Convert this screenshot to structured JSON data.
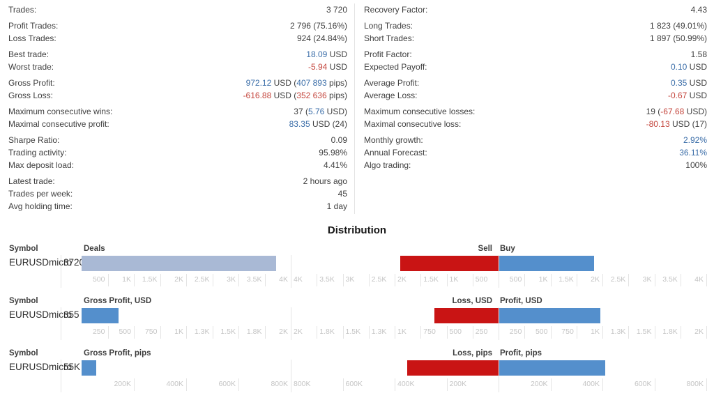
{
  "colors": {
    "text_dark": "#3f3f3f",
    "positive_blue_text": "#3a6da8",
    "negative_red_text": "#c4463d",
    "axis_label": "#c4c4c4",
    "gridline": "#e4e4e4",
    "deals_bar": "#a9b9d5",
    "sell_bar": "#c91414",
    "buy_bar": "#548fcc"
  },
  "stats": {
    "left": [
      [
        {
          "label": "Trades:",
          "value": [
            {
              "t": "3 720",
              "c": "d"
            }
          ]
        }
      ],
      [
        {
          "label": "Profit Trades:",
          "value": [
            {
              "t": "2 796 (75.16%)",
              "c": "d"
            }
          ]
        },
        {
          "label": "Loss Trades:",
          "value": [
            {
              "t": "924 (24.84%)",
              "c": "d"
            }
          ]
        }
      ],
      [
        {
          "label": "Best trade:",
          "value": [
            {
              "t": "18.09",
              "c": "b"
            },
            {
              "t": " USD",
              "c": "d"
            }
          ]
        },
        {
          "label": "Worst trade:",
          "value": [
            {
              "t": "-5.94",
              "c": "r"
            },
            {
              "t": " USD",
              "c": "d"
            }
          ]
        }
      ],
      [
        {
          "label": "Gross Profit:",
          "value": [
            {
              "t": "972.12",
              "c": "b"
            },
            {
              "t": " USD (",
              "c": "d"
            },
            {
              "t": "407 893",
              "c": "b"
            },
            {
              "t": " pips)",
              "c": "d"
            }
          ]
        },
        {
          "label": "Gross Loss:",
          "value": [
            {
              "t": "-616.88",
              "c": "r"
            },
            {
              "t": " USD (",
              "c": "d"
            },
            {
              "t": "352 636",
              "c": "r"
            },
            {
              "t": " pips)",
              "c": "d"
            }
          ]
        }
      ],
      [
        {
          "label": "Maximum consecutive wins:",
          "value": [
            {
              "t": "37 (",
              "c": "d"
            },
            {
              "t": "5.76",
              "c": "b"
            },
            {
              "t": " USD)",
              "c": "d"
            }
          ]
        },
        {
          "label": "Maximal consecutive profit:",
          "value": [
            {
              "t": "83.35",
              "c": "b"
            },
            {
              "t": " USD (24)",
              "c": "d"
            }
          ]
        }
      ],
      [
        {
          "label": "Sharpe Ratio:",
          "value": [
            {
              "t": "0.09",
              "c": "d"
            }
          ]
        },
        {
          "label": "Trading activity:",
          "value": [
            {
              "t": "95.98%",
              "c": "d"
            }
          ]
        },
        {
          "label": "Max deposit load:",
          "value": [
            {
              "t": "4.41%",
              "c": "d"
            }
          ]
        }
      ],
      [
        {
          "label": "Latest trade:",
          "value": [
            {
              "t": "2 hours ago",
              "c": "d"
            }
          ]
        },
        {
          "label": "Trades per week:",
          "value": [
            {
              "t": "45",
              "c": "d"
            }
          ]
        },
        {
          "label": "Avg holding time:",
          "value": [
            {
              "t": "1 day",
              "c": "d"
            }
          ]
        }
      ]
    ],
    "right": [
      [
        {
          "label": "Recovery Factor:",
          "value": [
            {
              "t": "4.43",
              "c": "d"
            }
          ]
        }
      ],
      [
        {
          "label": "Long Trades:",
          "value": [
            {
              "t": "1 823 (49.01%)",
              "c": "d"
            }
          ]
        },
        {
          "label": "Short Trades:",
          "value": [
            {
              "t": "1 897 (50.99%)",
              "c": "d"
            }
          ]
        }
      ],
      [
        {
          "label": "Profit Factor:",
          "value": [
            {
              "t": "1.58",
              "c": "d"
            }
          ]
        },
        {
          "label": "Expected Payoff:",
          "value": [
            {
              "t": "0.10",
              "c": "b"
            },
            {
              "t": " USD",
              "c": "d"
            }
          ]
        }
      ],
      [
        {
          "label": "Average Profit:",
          "value": [
            {
              "t": "0.35",
              "c": "b"
            },
            {
              "t": " USD",
              "c": "d"
            }
          ]
        },
        {
          "label": "Average Loss:",
          "value": [
            {
              "t": "-0.67",
              "c": "r"
            },
            {
              "t": " USD",
              "c": "d"
            }
          ]
        }
      ],
      [
        {
          "label": "Maximum consecutive losses:",
          "value": [
            {
              "t": "19 (",
              "c": "d"
            },
            {
              "t": "-67.68",
              "c": "r"
            },
            {
              "t": " USD)",
              "c": "d"
            }
          ]
        },
        {
          "label": "Maximal consecutive loss:",
          "value": [
            {
              "t": "-80.13",
              "c": "r"
            },
            {
              "t": " USD (17)",
              "c": "d"
            }
          ]
        }
      ],
      [
        {
          "label": "Monthly growth:",
          "value": [
            {
              "t": "2.92%",
              "c": "b"
            }
          ]
        },
        {
          "label": "Annual Forecast:",
          "value": [
            {
              "t": "36.11%",
              "c": "b"
            }
          ]
        },
        {
          "label": "Algo trading:",
          "value": [
            {
              "t": "100%",
              "c": "d"
            }
          ]
        }
      ]
    ]
  },
  "distribution": {
    "title": "Distribution",
    "symbol_header": "Symbol",
    "chart_data": {
      "type": "bar",
      "rows": [
        {
          "symbol": "EURUSDmicro",
          "count": "3720",
          "left": {
            "header": "Deals",
            "value": 3720,
            "max": 4000,
            "bar": "deals_bar",
            "ticks": [
              "500",
              "1K",
              "1.5K",
              "2K",
              "2.5K",
              "3K",
              "3.5K",
              "4K"
            ]
          },
          "mirror": {
            "sell_header": "Sell",
            "buy_header": "Buy",
            "sell_value": 1897,
            "buy_value": 1823,
            "max": 4000,
            "sell_ticks": [
              "4K",
              "3.5K",
              "3K",
              "2.5K",
              "2K",
              "1.5K",
              "1K",
              "500"
            ],
            "buy_ticks": [
              "500",
              "1K",
              "1.5K",
              "2K",
              "2.5K",
              "3K",
              "3.5K",
              "4K"
            ]
          }
        },
        {
          "symbol": "EURUSDmicro",
          "count": "355",
          "left": {
            "header": "Gross Profit, USD",
            "value": 355,
            "max": 2000,
            "bar": "buy_bar",
            "ticks": [
              "250",
              "500",
              "750",
              "1K",
              "1.3K",
              "1.5K",
              "1.8K",
              "2K"
            ]
          },
          "mirror": {
            "sell_header": "Loss, USD",
            "buy_header": "Profit, USD",
            "sell_value": 617,
            "buy_value": 972,
            "max": 2000,
            "sell_ticks": [
              "2K",
              "1.8K",
              "1.5K",
              "1.3K",
              "1K",
              "750",
              "500",
              "250"
            ],
            "buy_ticks": [
              "250",
              "500",
              "750",
              "1K",
              "1.3K",
              "1.5K",
              "1.8K",
              "2K"
            ]
          }
        },
        {
          "symbol": "EURUSDmicro",
          "count": "55K",
          "left": {
            "header": "Gross Profit, pips",
            "value": 55000,
            "max": 800000,
            "bar": "buy_bar",
            "ticks": [
              "200K",
              "400K",
              "600K",
              "800K"
            ]
          },
          "mirror": {
            "sell_header": "Loss, pips",
            "buy_header": "Profit, pips",
            "sell_value": 352636,
            "buy_value": 407893,
            "max": 800000,
            "sell_ticks": [
              "800K",
              "600K",
              "400K",
              "200K"
            ],
            "buy_ticks": [
              "200K",
              "400K",
              "600K",
              "800K"
            ]
          }
        }
      ]
    }
  }
}
